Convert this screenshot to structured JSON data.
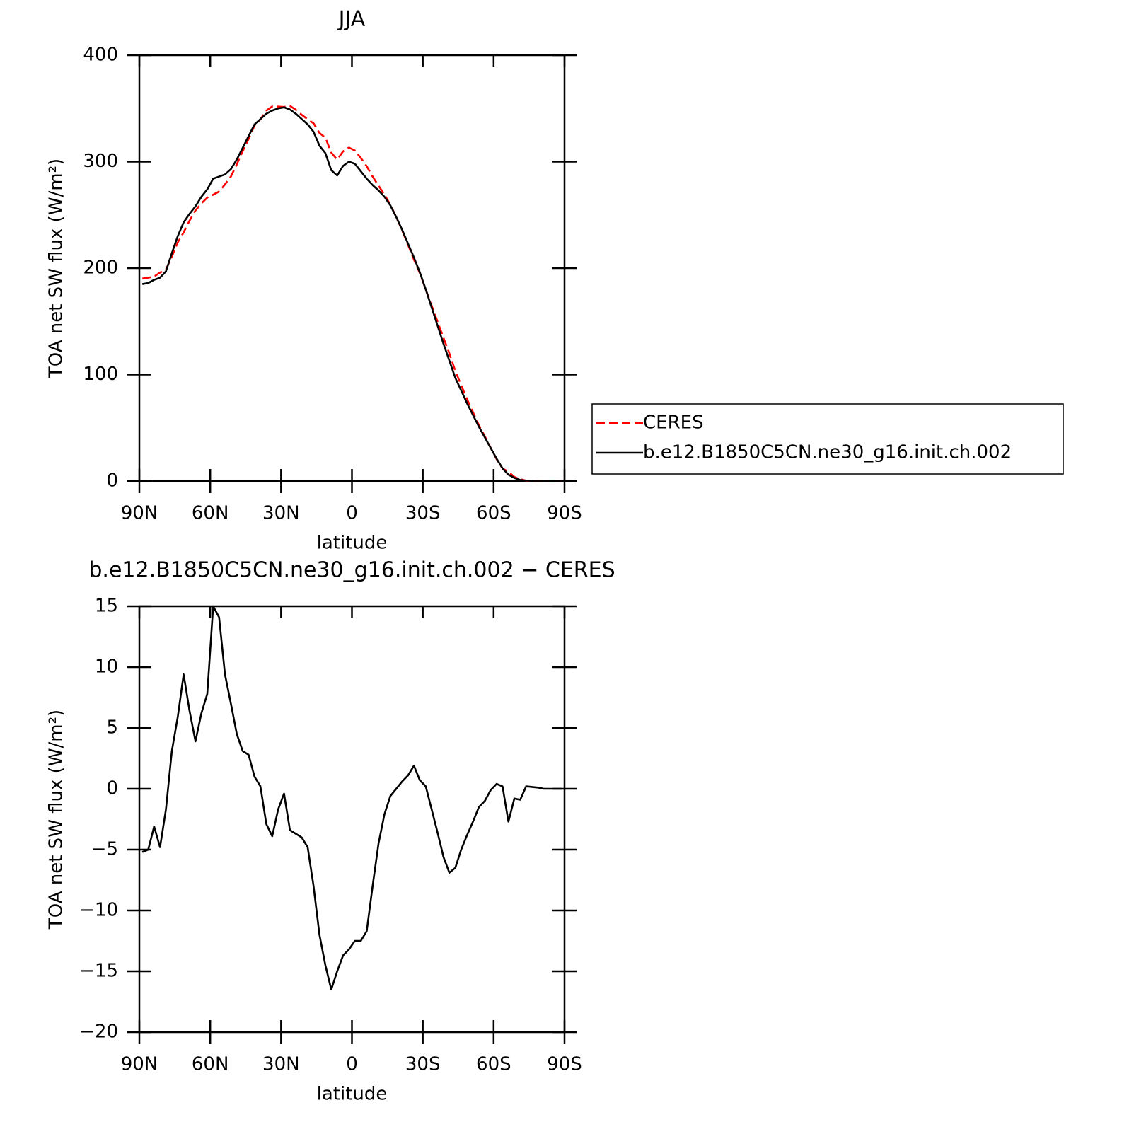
{
  "chart_data": [
    {
      "type": "line",
      "title": "JJA",
      "x_label": "latitude",
      "y_label": "TOA net SW flux (W/m²)",
      "x": [
        88.75,
        86.25,
        83.75,
        81.25,
        78.75,
        76.25,
        73.75,
        71.25,
        68.75,
        66.25,
        63.75,
        61.25,
        58.75,
        56.25,
        53.75,
        51.25,
        48.75,
        46.25,
        43.75,
        41.25,
        38.75,
        36.25,
        33.75,
        31.25,
        28.75,
        26.25,
        23.75,
        21.25,
        18.75,
        16.25,
        13.75,
        11.25,
        8.75,
        6.25,
        3.75,
        1.25,
        -1.25,
        -3.75,
        -6.25,
        -8.75,
        -11.25,
        -13.75,
        -16.25,
        -18.75,
        -21.25,
        -23.75,
        -26.25,
        -28.75,
        -31.25,
        -33.75,
        -36.25,
        -38.75,
        -41.25,
        -43.75,
        -46.25,
        -48.75,
        -51.25,
        -53.75,
        -56.25,
        -58.75,
        -61.25,
        -63.75,
        -66.25,
        -68.75,
        -71.25,
        -73.75,
        -76.25,
        -78.75,
        -81.25,
        -83.75,
        -86.25,
        -88.75
      ],
      "series": [
        {
          "name": "CERES",
          "color": "#ff0000",
          "dash": true,
          "values": [
            190.2,
            191,
            192.1,
            195.8,
            198.7,
            210.9,
            224.1,
            233.6,
            244.6,
            254.1,
            260.8,
            266.2,
            269,
            271.9,
            278.6,
            286,
            297.5,
            309.9,
            321.2,
            334,
            339.8,
            347.9,
            351.9,
            351.7,
            351.4,
            352.4,
            348.7,
            344,
            339.8,
            336,
            327,
            322.5,
            308.5,
            302,
            309.7,
            313.2,
            310.5,
            303.5,
            295.7,
            286,
            277.5,
            269.1,
            259.6,
            248,
            235.4,
            221.9,
            208.1,
            195.3,
            179.8,
            164.7,
            149.6,
            134.6,
            119.9,
            103.5,
            90,
            76.8,
            64.7,
            52.5,
            42,
            31.1,
            20.6,
            11.8,
            8.7,
            3.8,
            1.9,
            0.3,
            0.1,
            0,
            0,
            0,
            0,
            0
          ]
        },
        {
          "name": "b.e12.B1850C5CN.ne30_g16.init.ch.002",
          "color": "#000000",
          "dash": false,
          "values": [
            185,
            186,
            189,
            191,
            197,
            214,
            230,
            243,
            251,
            258,
            267,
            274,
            284,
            286,
            288,
            293,
            302,
            313,
            324,
            335,
            340,
            345,
            348,
            350,
            351,
            349,
            345,
            340,
            335,
            328,
            315,
            308,
            292,
            287,
            296,
            300,
            298,
            291,
            284,
            278,
            273,
            267,
            259,
            248,
            236,
            223,
            210,
            196,
            180,
            163,
            146,
            129,
            113,
            97,
            85,
            73,
            62,
            51,
            41,
            31,
            21,
            12,
            6,
            3,
            1,
            0.5,
            0.2,
            0,
            0,
            0,
            0,
            0
          ]
        }
      ],
      "xlim": [
        90,
        -90
      ],
      "xticks": [
        {
          "value": 90,
          "label": "90N"
        },
        {
          "value": 60,
          "label": "60N"
        },
        {
          "value": 30,
          "label": "30N"
        },
        0,
        {
          "value": -30,
          "label": "30S"
        },
        {
          "value": -60,
          "label": "60S"
        },
        {
          "value": -90,
          "label": "90S"
        }
      ],
      "ylim": [
        0,
        400
      ],
      "yticks": [
        0,
        100,
        200,
        300,
        400
      ],
      "legend": "right"
    },
    {
      "type": "line",
      "title": "b.e12.B1850C5CN.ne30_g16.init.ch.002 − CERES",
      "x_label": "latitude",
      "y_label": "TOA net SW flux (W/m²)",
      "x": [
        88.75,
        86.25,
        83.75,
        81.25,
        78.75,
        76.25,
        73.75,
        71.25,
        68.75,
        66.25,
        63.75,
        61.25,
        58.75,
        56.25,
        53.75,
        51.25,
        48.75,
        46.25,
        43.75,
        41.25,
        38.75,
        36.25,
        33.75,
        31.25,
        28.75,
        26.25,
        23.75,
        21.25,
        18.75,
        16.25,
        13.75,
        11.25,
        8.75,
        6.25,
        3.75,
        1.25,
        -1.25,
        -3.75,
        -6.25,
        -8.75,
        -11.25,
        -13.75,
        -16.25,
        -18.75,
        -21.25,
        -23.75,
        -26.25,
        -28.75,
        -31.25,
        -33.75,
        -36.25,
        -38.75,
        -41.25,
        -43.75,
        -46.25,
        -48.75,
        -51.25,
        -53.75,
        -56.25,
        -58.75,
        -61.25,
        -63.75,
        -66.25,
        -68.75,
        -71.25,
        -73.75,
        -76.25,
        -78.75,
        -81.25,
        -83.75,
        -86.25,
        -88.75
      ],
      "values": [
        -5.2,
        -5,
        -3.1,
        -4.8,
        -1.7,
        3.1,
        5.9,
        9.4,
        6.4,
        3.9,
        6.2,
        7.8,
        15,
        14.1,
        9.4,
        7,
        4.5,
        3.1,
        2.8,
        1,
        0.2,
        -2.9,
        -3.9,
        -1.7,
        -0.4,
        -3.4,
        -3.7,
        -4,
        -4.8,
        -8,
        -12,
        -14.5,
        -16.5,
        -15,
        -13.7,
        -13.2,
        -12.5,
        -12.5,
        -11.7,
        -8,
        -4.5,
        -2.1,
        -0.6,
        0,
        0.6,
        1.1,
        1.9,
        0.7,
        0.2,
        -1.7,
        -3.6,
        -5.6,
        -6.9,
        -6.5,
        -5,
        -3.8,
        -2.7,
        -1.5,
        -1,
        -0.1,
        0.4,
        0.2,
        -2.7,
        -0.8,
        -0.9,
        0.2,
        0.15,
        0.1,
        0,
        0,
        0,
        0
      ],
      "color": "#000000",
      "xlim": [
        90,
        -90
      ],
      "xticks": [
        {
          "value": 90,
          "label": "90N"
        },
        {
          "value": 60,
          "label": "60N"
        },
        {
          "value": 30,
          "label": "30N"
        },
        0,
        {
          "value": -30,
          "label": "30S"
        },
        {
          "value": -60,
          "label": "60S"
        },
        {
          "value": -90,
          "label": "90S"
        }
      ],
      "ylim": [
        -20,
        15
      ],
      "yticks": [
        {
          "value": -20,
          "label": "−20"
        },
        {
          "value": -15,
          "label": "−15"
        },
        {
          "value": -10,
          "label": "−10"
        },
        {
          "value": -5,
          "label": "−5"
        },
        0,
        5,
        10,
        15
      ]
    }
  ]
}
